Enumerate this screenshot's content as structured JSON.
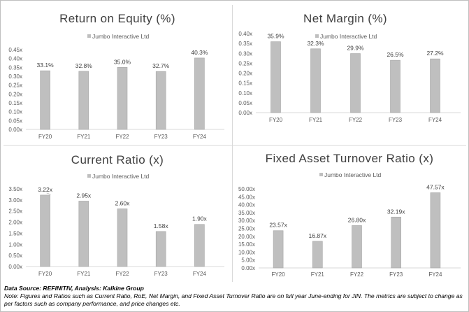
{
  "chart_data": [
    {
      "type": "bar",
      "title": "Return on Equity (%)",
      "legend": "Jumbo Interactive Ltd",
      "legend_position": "top-center",
      "categories": [
        "FY20",
        "FY21",
        "FY22",
        "FY23",
        "FY24"
      ],
      "series": [
        {
          "name": "Jumbo Interactive Ltd",
          "values": [
            0.331,
            0.328,
            0.35,
            0.327,
            0.403
          ]
        }
      ],
      "data_labels": [
        "33.1%",
        "32.8%",
        "35.0%",
        "32.7%",
        "40.3%"
      ],
      "yticks": [
        "0.00x",
        "0.05x",
        "0.10x",
        "0.15x",
        "0.20x",
        "0.25x",
        "0.30x",
        "0.35x",
        "0.40x",
        "0.45x"
      ],
      "ylim": [
        0,
        0.45
      ],
      "grid": false,
      "bar_color": "#bfbfbf"
    },
    {
      "type": "bar",
      "title": "Net Margin (%)",
      "legend": "Jumbo Interactive Ltd",
      "legend_position": "top-center",
      "categories": [
        "FY20",
        "FY21",
        "FY22",
        "FY23",
        "FY24"
      ],
      "series": [
        {
          "name": "Jumbo Interactive Ltd",
          "values": [
            0.359,
            0.323,
            0.299,
            0.265,
            0.272
          ]
        }
      ],
      "data_labels": [
        "35.9%",
        "32.3%",
        "29.9%",
        "26.5%",
        "27.2%"
      ],
      "yticks": [
        "0.00x",
        "0.05x",
        "0.10x",
        "0.15x",
        "0.20x",
        "0.25x",
        "0.30x",
        "0.35x",
        "0.40x"
      ],
      "ylim": [
        0,
        0.4
      ],
      "grid": false,
      "bar_color": "#bfbfbf"
    },
    {
      "type": "bar",
      "title": "Current  Ratio (x)",
      "legend": "Jumbo Interactive Ltd",
      "legend_position": "top-center",
      "categories": [
        "FY20",
        "FY21",
        "FY22",
        "FY23",
        "FY24"
      ],
      "series": [
        {
          "name": "Jumbo Interactive Ltd",
          "values": [
            3.22,
            2.95,
            2.6,
            1.58,
            1.9
          ]
        }
      ],
      "data_labels": [
        "3.22x",
        "2.95x",
        "2.60x",
        "1.58x",
        "1.90x"
      ],
      "yticks": [
        "0.00x",
        "0.50x",
        "1.00x",
        "1.50x",
        "2.00x",
        "2.50x",
        "3.00x",
        "3.50x"
      ],
      "ylim": [
        0,
        3.5
      ],
      "grid": false,
      "bar_color": "#bfbfbf"
    },
    {
      "type": "bar",
      "title": "Fixed Asset Turnover Ratio (x)",
      "legend": "Jumbo Interactive Ltd",
      "legend_position": "top-center",
      "categories": [
        "FY20",
        "FY21",
        "FY22",
        "FY23",
        "FY24"
      ],
      "series": [
        {
          "name": "Jumbo Interactive Ltd",
          "values": [
            23.57,
            16.87,
            26.8,
            32.19,
            47.57
          ]
        }
      ],
      "data_labels": [
        "23.57x",
        "16.87x",
        "26.80x",
        "32.19x",
        "47.57x"
      ],
      "yticks": [
        "0.00x",
        "5.00x",
        "10.00x",
        "15.00x",
        "20.00x",
        "25.00x",
        "30.00x",
        "35.00x",
        "40.00x",
        "45.00x",
        "50.00x"
      ],
      "ylim": [
        0,
        50
      ],
      "grid": false,
      "bar_color": "#bfbfbf"
    }
  ],
  "footer": {
    "source": "Data Source: REFINITIV, Analysis: Kalkine Group",
    "note": "Note: Figures and Ratios such as Current Ratio, RoE, Net Margin, and Fixed Asset Turnover Ratio are on full year June-ending for JIN. The metrics are subject to change as per factors such as company performance, and price changes etc."
  }
}
